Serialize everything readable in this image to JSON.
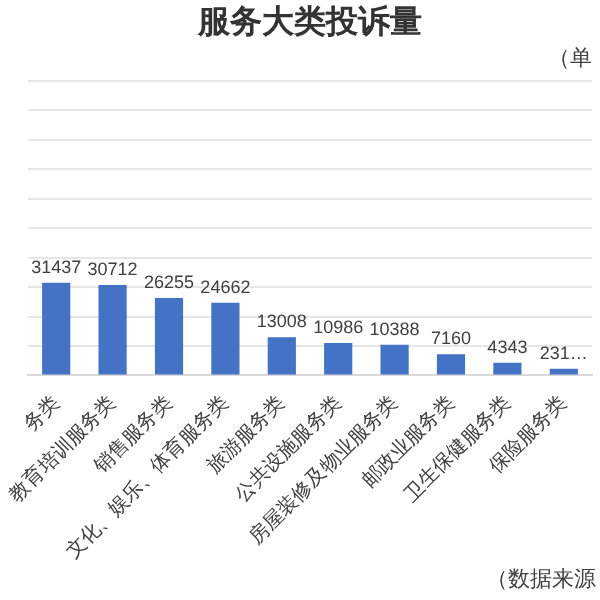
{
  "chart_data": {
    "type": "bar",
    "title": "服务大类投诉量",
    "subtitle": "（单",
    "categories": [
      "务类",
      "教育培训服务类",
      "销售服务类",
      "文化、娱乐、体育服务类",
      "旅游服务类",
      "公共设施服务类",
      "房屋装修及物业服务类",
      "邮政业服务类",
      "卫生保健服务类",
      "保险服务类"
    ],
    "values": [
      31437,
      30712,
      26255,
      24662,
      13008,
      10986,
      10388,
      7160,
      4343,
      2310
    ],
    "value_labels": [
      "31437",
      "30712",
      "26255",
      "24662",
      "13008",
      "10986",
      "10388",
      "7160",
      "4343",
      "231…"
    ],
    "color": "#4472c4",
    "ylim": [
      0,
      100000
    ],
    "yticks": [
      {
        "value": 0,
        "label": null
      },
      {
        "value": 10000,
        "label": null
      },
      {
        "value": 20000,
        "label": null
      },
      {
        "value": 30000,
        "label": null
      },
      {
        "value": 40000,
        "label": null
      },
      {
        "value": 50000,
        "label": null
      },
      {
        "value": 60000,
        "label": null
      },
      {
        "value": 70000,
        "label": null
      },
      {
        "value": 80000,
        "label": null
      },
      {
        "value": 90000,
        "label": null
      },
      {
        "value": 100000,
        "label": null
      }
    ],
    "grid": "y",
    "tick_labels": "x",
    "legend": false,
    "annotations": [
      "（数据来源"
    ]
  }
}
